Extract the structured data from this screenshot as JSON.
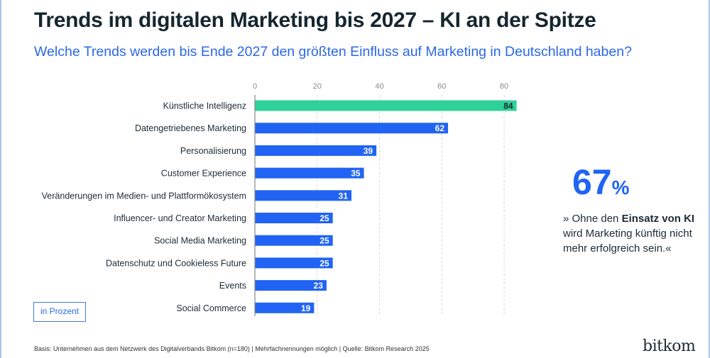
{
  "title": "Trends im digitalen Marketing bis 2027 – KI an der Spitze",
  "subtitle": "Welche Trends werden bis Ende 2027 den größten Einfluss auf Marketing in Deutschland haben?",
  "unit_label": "in Prozent",
  "highlight": {
    "value": "67",
    "unit": "%",
    "quote_pre": "» Ohne den ",
    "quote_bold": "Einsatz von KI",
    "quote_post": " wird Marketing künftig nicht mehr erfolgreich sein.«"
  },
  "footer": "Basis: Unternehmen aus dem Netzwerk des Digitalverbands Bitkom (n=180) | Mehrfachnennungen möglich | Quelle: Bitkom Research 2025",
  "logo": "bitkom",
  "chart_data": {
    "type": "bar",
    "orientation": "horizontal",
    "categories": [
      "Künstliche Intelligenz",
      "Datengetriebenes Marketing",
      "Personalisierung",
      "Customer Experience",
      "Veränderungen im Medien- und Plattformökosystem",
      "Influencer- und Creator Marketing",
      "Social Media Marketing",
      "Datenschutz und Cookieless Future",
      "Events",
      "Social Commerce"
    ],
    "values": [
      84,
      62,
      39,
      35,
      31,
      25,
      25,
      25,
      23,
      19
    ],
    "xlim": [
      0,
      85
    ],
    "xticks": [
      0,
      20,
      40,
      60,
      80
    ],
    "grid": true,
    "colors": {
      "highlight": "#2ed197",
      "default": "#2164f3"
    }
  }
}
